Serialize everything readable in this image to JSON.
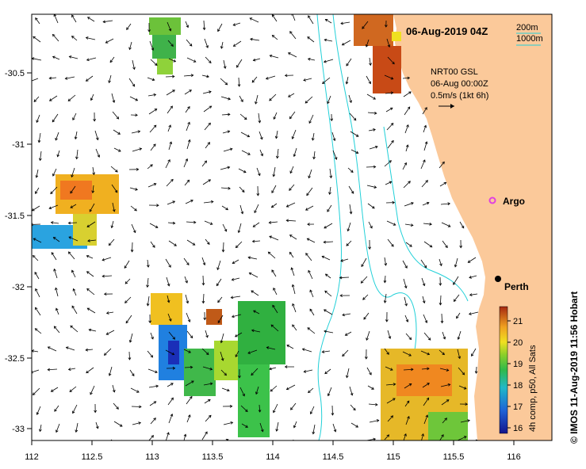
{
  "header": {
    "datetime": "06-Aug-2019 04Z",
    "scale_short": "200m",
    "scale_long": "1000m"
  },
  "legend_box": {
    "line1": "NRT00 GSL",
    "line2": "06-Aug 00:00Z",
    "line3": "0.5m/s (1kt 6h)"
  },
  "places": {
    "argo": "Argo",
    "perth": "Perth"
  },
  "colorbar": {
    "ticks": [
      "21",
      "20",
      "19",
      "18",
      "17",
      "16"
    ],
    "label": "4h comp, p50, All Sats"
  },
  "credit": "© IMOS 11-Aug-2019 11:56 Hobart",
  "axes": {
    "x_ticks": [
      "112",
      "112.5",
      "113",
      "113.5",
      "114",
      "114.5",
      "115",
      "115.5",
      "116"
    ],
    "y_ticks": [
      "-30.5",
      "-31",
      "-31.5",
      "-32",
      "-32.5",
      "-33"
    ]
  },
  "colors": {
    "land": "#fbc99a",
    "isobath": "#21d0d8",
    "argo_marker": "#e040e0",
    "sst_hot": "#b03a10",
    "sst_cool": "#1a2fb8"
  }
}
